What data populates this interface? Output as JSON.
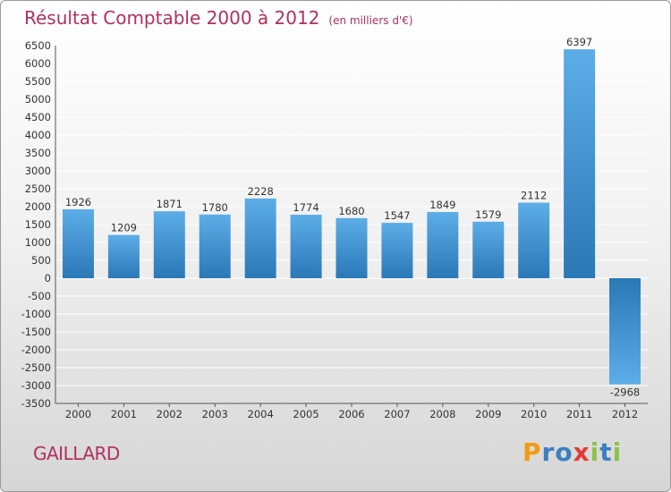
{
  "title": "Résultat Comptable 2000 à 2012",
  "subtitle": "(en milliers d'€)",
  "location": "GAILLARD",
  "brand": {
    "text": "Proxiti",
    "letters": [
      {
        "ch": "P",
        "color": "#f39c12"
      },
      {
        "ch": "r",
        "color": "#3a7fc1"
      },
      {
        "ch": "o",
        "color": "#3a7fc1"
      },
      {
        "ch": "x",
        "color": "#e53935"
      },
      {
        "ch": "i",
        "color": "#8bc34a"
      },
      {
        "ch": "t",
        "color": "#3a7fc1"
      },
      {
        "ch": "i",
        "color": "#8bc34a"
      }
    ]
  },
  "colors": {
    "title": "#b0305e",
    "bar_light": "#5dade8",
    "bar_dark": "#2a78b6",
    "grid": "#ffffff",
    "text": "#333333"
  },
  "chart_data": {
    "type": "bar",
    "title": "Résultat Comptable 2000 à 2012",
    "ylabel": "en milliers d'€",
    "xlabel": "",
    "categories": [
      "2000",
      "2001",
      "2002",
      "2003",
      "2004",
      "2005",
      "2006",
      "2007",
      "2008",
      "2009",
      "2010",
      "2011",
      "2012"
    ],
    "values": [
      1926,
      1209,
      1871,
      1780,
      2228,
      1774,
      1680,
      1547,
      1849,
      1579,
      2112,
      6397,
      -2968
    ],
    "ylim": [
      -3500,
      6500
    ],
    "ytick_step": 500,
    "grid": true
  }
}
